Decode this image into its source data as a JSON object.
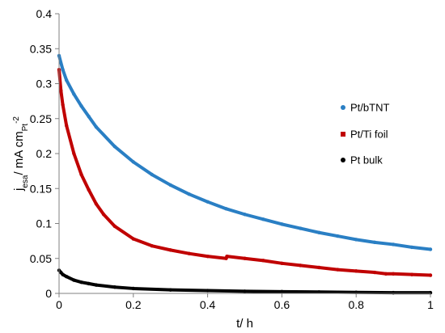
{
  "chart_data": {
    "type": "line",
    "xlabel": "t/ h",
    "ylabel": {
      "main": "j",
      "sub1": "esa",
      "mid": "/ mA cm",
      "sub2": "Pt",
      "sup": "-2"
    },
    "xlim": [
      0,
      1
    ],
    "ylim": [
      0,
      0.4
    ],
    "x_ticks": [
      "0",
      "0.2",
      "0.4",
      "0.6",
      "0.8",
      "1"
    ],
    "y_ticks": [
      "0",
      "0.05",
      "0.1",
      "0.15",
      "0.2",
      "0.25",
      "0.3",
      "0.35",
      "0.4"
    ],
    "grid": false,
    "legend_position": "right",
    "series": [
      {
        "name": "Pt/bTNT",
        "color": "#2a7fc4",
        "x": [
          0,
          0.01,
          0.02,
          0.04,
          0.06,
          0.08,
          0.1,
          0.15,
          0.2,
          0.25,
          0.3,
          0.35,
          0.4,
          0.45,
          0.5,
          0.55,
          0.6,
          0.65,
          0.7,
          0.75,
          0.8,
          0.85,
          0.9,
          0.95,
          1.0
        ],
        "y": [
          0.34,
          0.32,
          0.305,
          0.285,
          0.268,
          0.253,
          0.238,
          0.21,
          0.188,
          0.17,
          0.155,
          0.142,
          0.131,
          0.121,
          0.113,
          0.106,
          0.099,
          0.093,
          0.087,
          0.082,
          0.077,
          0.073,
          0.07,
          0.066,
          0.063
        ]
      },
      {
        "name": "Pt/Ti foil",
        "color": "#c00000",
        "x": [
          0,
          0.005,
          0.01,
          0.02,
          0.04,
          0.06,
          0.08,
          0.1,
          0.12,
          0.15,
          0.2,
          0.25,
          0.3,
          0.35,
          0.4,
          0.45,
          0.452,
          0.5,
          0.55,
          0.6,
          0.65,
          0.7,
          0.75,
          0.8,
          0.85,
          0.88,
          0.9,
          0.95,
          1.0
        ],
        "y": [
          0.32,
          0.29,
          0.27,
          0.24,
          0.2,
          0.17,
          0.148,
          0.128,
          0.113,
          0.096,
          0.078,
          0.068,
          0.062,
          0.057,
          0.053,
          0.05,
          0.053,
          0.05,
          0.047,
          0.043,
          0.04,
          0.037,
          0.034,
          0.032,
          0.03,
          0.028,
          0.028,
          0.027,
          0.026
        ]
      },
      {
        "name": "Pt bulk",
        "color": "#000000",
        "x": [
          0,
          0.005,
          0.01,
          0.02,
          0.04,
          0.06,
          0.08,
          0.1,
          0.15,
          0.2,
          0.3,
          0.4,
          0.5,
          0.6,
          0.7,
          0.8,
          0.9,
          1.0
        ],
        "y": [
          0.033,
          0.03,
          0.027,
          0.024,
          0.019,
          0.016,
          0.014,
          0.012,
          0.009,
          0.007,
          0.005,
          0.004,
          0.003,
          0.0025,
          0.002,
          0.0015,
          0.001,
          0.001
        ]
      }
    ]
  }
}
